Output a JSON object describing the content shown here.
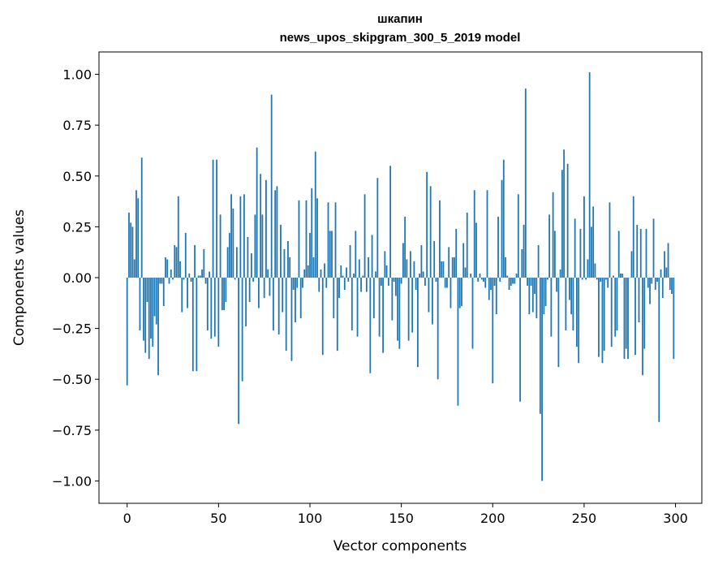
{
  "chart_data": {
    "type": "bar",
    "title": "шкапин",
    "subtitle": "news_upos_skipgram_300_5_2019 model",
    "xlabel": "Vector components",
    "ylabel": "Components values",
    "xlim": [
      -15.4,
      314.4
    ],
    "ylim": [
      -1.11,
      1.11
    ],
    "xticks": [
      0,
      50,
      100,
      150,
      200,
      250,
      300
    ],
    "xtick_labels": [
      "0",
      "50",
      "100",
      "150",
      "200",
      "250",
      "300"
    ],
    "yticks": [
      1.0,
      0.75,
      0.5,
      0.25,
      0.0,
      -0.25,
      -0.5,
      -0.75,
      -1.0
    ],
    "ytick_labels": [
      "1.00",
      "0.75",
      "0.50",
      "0.25",
      "0.00",
      "−0.25",
      "−0.50",
      "−0.75",
      "−1.00"
    ],
    "grid": false,
    "color": "#1f77b4",
    "values": [
      -0.53,
      0.32,
      0.27,
      0.25,
      0.09,
      0.43,
      0.39,
      -0.26,
      0.59,
      -0.31,
      -0.37,
      -0.12,
      -0.4,
      -0.3,
      -0.34,
      -0.19,
      -0.23,
      -0.48,
      -0.03,
      -0.03,
      -0.14,
      0.1,
      0.09,
      -0.03,
      0.04,
      -0.01,
      0.16,
      0.15,
      0.4,
      0.08,
      -0.17,
      -0.01,
      0.22,
      -0.15,
      0.02,
      -0.02,
      -0.46,
      0.16,
      -0.46,
      0.01,
      0.01,
      0.04,
      0.14,
      -0.03,
      -0.26,
      0.03,
      -0.3,
      0.58,
      -0.29,
      0.58,
      -0.34,
      0.31,
      -0.16,
      -0.16,
      -0.12,
      0.15,
      0.22,
      0.41,
      0.34,
      -0.01,
      0.15,
      -0.72,
      0.4,
      -0.51,
      0.41,
      -0.24,
      0.2,
      -0.12,
      0.12,
      -0.02,
      0.31,
      0.64,
      -0.15,
      0.51,
      0.31,
      -0.1,
      0.48,
      0.04,
      -0.09,
      0.9,
      -0.26,
      0.43,
      0.45,
      -0.28,
      0.26,
      -0.17,
      0.14,
      -0.36,
      0.18,
      0.1,
      -0.41,
      -0.06,
      -0.22,
      -0.05,
      0.38,
      -0.2,
      -0.05,
      0.04,
      0.38,
      0.06,
      0.22,
      0.44,
      0.1,
      0.62,
      0.39,
      -0.07,
      0.04,
      -0.38,
      0.07,
      -0.05,
      0.37,
      0.23,
      0.23,
      -0.2,
      0.37,
      -0.36,
      -0.1,
      0.06,
      0.01,
      -0.06,
      0.05,
      -0.02,
      0.16,
      -0.26,
      0.02,
      0.23,
      -0.29,
      0.09,
      -0.07,
      0.01,
      0.41,
      -0.07,
      0.1,
      -0.47,
      0.21,
      -0.2,
      0.03,
      0.49,
      -0.29,
      -0.04,
      -0.37,
      0.13,
      0.06,
      -0.04,
      0.55,
      -0.21,
      -0.02,
      -0.09,
      -0.31,
      -0.35,
      -0.03,
      0.17,
      0.3,
      0.09,
      -0.31,
      0.13,
      -0.27,
      0.08,
      -0.06,
      -0.44,
      0.02,
      0.16,
      0.03,
      -0.04,
      0.52,
      -0.17,
      0.45,
      -0.23,
      0.18,
      -0.02,
      -0.5,
      0.38,
      0.08,
      0.08,
      -0.05,
      -0.05,
      0.15,
      -0.15,
      0.1,
      0.1,
      0.24,
      -0.63,
      -0.15,
      -0.14,
      0.17,
      0.05,
      0.32,
      0.0,
      0.02,
      -0.35,
      0.43,
      0.27,
      -0.02,
      0.02,
      -0.01,
      -0.02,
      -0.05,
      0.43,
      -0.11,
      -0.06,
      -0.52,
      -0.04,
      -0.18,
      0.3,
      -0.02,
      0.48,
      0.58,
      0.1,
      0.01,
      -0.06,
      -0.04,
      -0.03,
      -0.03,
      0.02,
      0.41,
      -0.61,
      0.14,
      0.26,
      0.93,
      -0.04,
      -0.18,
      -0.04,
      -0.17,
      -0.08,
      -0.2,
      0.16,
      -0.67,
      -1.0,
      -0.18,
      -0.14,
      -0.01,
      0.31,
      -0.29,
      0.42,
      0.23,
      -0.07,
      -0.44,
      0.04,
      0.53,
      0.63,
      -0.26,
      0.56,
      -0.11,
      -0.18,
      -0.26,
      0.29,
      -0.34,
      -0.42,
      0.24,
      -0.01,
      0.4,
      -0.01,
      0.09,
      1.01,
      0.25,
      0.35,
      0.07,
      -0.01,
      -0.39,
      -0.02,
      -0.42,
      -0.36,
      -0.01,
      -0.05,
      0.37,
      -0.34,
      0.01,
      -0.29,
      -0.26,
      0.23,
      0.02,
      0.02,
      -0.4,
      -0.35,
      -0.4,
      0.0,
      0.13,
      0.4,
      -0.38,
      0.26,
      -0.22,
      0.24,
      -0.48,
      -0.35,
      0.24,
      -0.05,
      -0.13,
      -0.03,
      0.29,
      -0.06,
      -0.02,
      -0.71,
      0.04,
      -0.1,
      0.13,
      0.05,
      0.17,
      -0.06,
      -0.08,
      -0.4
    ]
  }
}
